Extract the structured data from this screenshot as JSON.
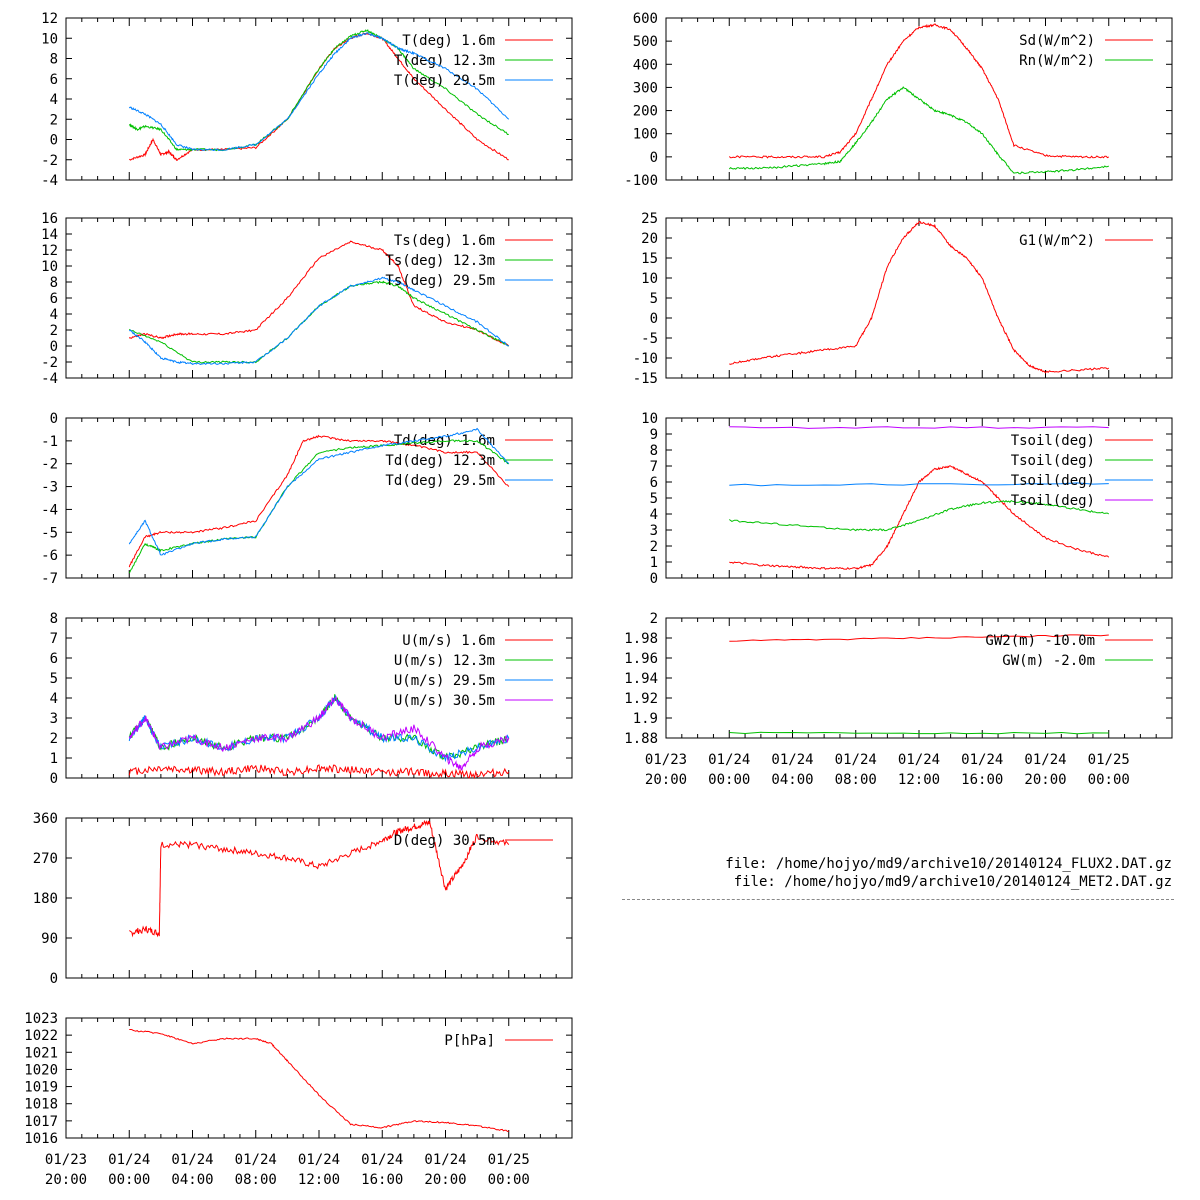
{
  "colors": {
    "red": "#ff0000",
    "green": "#00c000",
    "blue": "#0080ff",
    "purple": "#c000ff"
  },
  "files": [
    "file: /home/hojyo/md9/archive10/20140124_FLUX2.DAT.gz",
    "file: /home/hojyo/md9/archive10/20140124_MET2.DAT.gz"
  ],
  "time_axis": {
    "range_hours": [
      -4,
      28
    ],
    "ticks": [
      {
        "hour": -4,
        "line1": "01/23",
        "line2": "20:00"
      },
      {
        "hour": 0,
        "line1": "01/24",
        "line2": "00:00"
      },
      {
        "hour": 4,
        "line1": "01/24",
        "line2": "04:00"
      },
      {
        "hour": 8,
        "line1": "01/24",
        "line2": "08:00"
      },
      {
        "hour": 12,
        "line1": "01/24",
        "line2": "12:00"
      },
      {
        "hour": 16,
        "line1": "01/24",
        "line2": "16:00"
      },
      {
        "hour": 20,
        "line1": "01/24",
        "line2": "20:00"
      },
      {
        "hour": 24,
        "line1": "01/25",
        "line2": "00:00"
      }
    ]
  },
  "chart_data": [
    {
      "id": "temperature",
      "type": "line",
      "ylim": [
        -4,
        12
      ],
      "yticks": [
        -4,
        -2,
        0,
        2,
        4,
        6,
        8,
        10,
        12
      ],
      "series": [
        {
          "name": "T(deg)  1.6m",
          "color": "red",
          "x": [
            0,
            1,
            1.5,
            2,
            2.5,
            3,
            4,
            6,
            8,
            10,
            12,
            13,
            14,
            15,
            16,
            17,
            18,
            20,
            22,
            24
          ],
          "y": [
            -2,
            -1.5,
            0,
            -1.5,
            -1.2,
            -2,
            -1,
            -1,
            -0.8,
            2,
            7,
            9,
            10,
            10.5,
            10,
            8,
            6,
            3,
            0,
            -2
          ]
        },
        {
          "name": "T(deg) 12.3m",
          "color": "green",
          "x": [
            0,
            0.5,
            1,
            2,
            3,
            4,
            6,
            8,
            10,
            12,
            13,
            14,
            15,
            16,
            17,
            18,
            20,
            22,
            24
          ],
          "y": [
            1.5,
            1,
            1.3,
            1,
            -1,
            -1,
            -1,
            -0.5,
            2,
            7,
            9,
            10.2,
            10.8,
            10,
            9,
            7,
            5,
            2.5,
            0.5
          ]
        },
        {
          "name": "T(deg) 29.5m",
          "color": "blue",
          "x": [
            0,
            1,
            2,
            3,
            4,
            6,
            8,
            10,
            12,
            13,
            14,
            15,
            16,
            17,
            18,
            20,
            22,
            24
          ],
          "y": [
            3.2,
            2.5,
            1.5,
            -0.5,
            -1,
            -1,
            -0.5,
            2,
            6.5,
            8.5,
            10,
            10.5,
            10,
            9,
            8.5,
            7,
            5,
            2
          ]
        }
      ]
    },
    {
      "id": "surface-temperature",
      "type": "line",
      "ylim": [
        -4,
        16
      ],
      "yticks": [
        -4,
        -2,
        0,
        2,
        4,
        6,
        8,
        10,
        12,
        14,
        16
      ],
      "series": [
        {
          "name": "Ts(deg)  1.6m",
          "color": "red",
          "x": [
            0,
            1,
            2,
            3,
            4,
            6,
            8,
            10,
            12,
            14,
            16,
            17,
            18,
            20,
            22,
            24
          ],
          "y": [
            1,
            1.5,
            1,
            1.5,
            1.5,
            1.5,
            2,
            6,
            11,
            13,
            12,
            10,
            5,
            3,
            2,
            0
          ]
        },
        {
          "name": "Ts(deg) 12.3m",
          "color": "green",
          "x": [
            0,
            2,
            4,
            6,
            8,
            10,
            12,
            14,
            16,
            17,
            18,
            20,
            22,
            24
          ],
          "y": [
            2,
            0.5,
            -2,
            -2,
            -2,
            1,
            5,
            7.5,
            8,
            7.5,
            6,
            4,
            2,
            0
          ]
        },
        {
          "name": "Ts(deg) 29.5m",
          "color": "blue",
          "x": [
            0,
            1,
            2,
            3,
            4,
            6,
            8,
            10,
            12,
            14,
            16,
            17,
            18,
            20,
            22,
            24
          ],
          "y": [
            2,
            0.5,
            -1.5,
            -2,
            -2.2,
            -2.2,
            -2,
            1,
            5,
            7.5,
            8.5,
            8,
            7,
            5,
            3,
            0
          ]
        }
      ]
    },
    {
      "id": "dewpoint",
      "type": "line",
      "ylim": [
        -7,
        0
      ],
      "yticks": [
        -7,
        -6,
        -5,
        -4,
        -3,
        -2,
        -1,
        0
      ],
      "series": [
        {
          "name": "Td(deg)  1.6m",
          "color": "red",
          "x": [
            0,
            1,
            2,
            4,
            6,
            8,
            10,
            11,
            12,
            14,
            16,
            18,
            20,
            22,
            24
          ],
          "y": [
            -6.5,
            -5.2,
            -5,
            -5,
            -4.8,
            -4.5,
            -2.5,
            -1,
            -0.8,
            -1,
            -1,
            -1.2,
            -1.5,
            -1.5,
            -3
          ]
        },
        {
          "name": "Td(deg) 12.3m",
          "color": "green",
          "x": [
            0,
            1,
            2,
            4,
            6,
            8,
            10,
            12,
            14,
            16,
            18,
            20,
            22,
            24
          ],
          "y": [
            -6.8,
            -5.5,
            -5.8,
            -5.5,
            -5.3,
            -5.2,
            -3,
            -1.5,
            -1.3,
            -1.2,
            -1.1,
            -1,
            -1,
            -2
          ]
        },
        {
          "name": "Td(deg) 29.5m",
          "color": "blue",
          "x": [
            0,
            1,
            2,
            4,
            6,
            8,
            10,
            12,
            14,
            16,
            18,
            20,
            22,
            24
          ],
          "y": [
            -5.5,
            -4.5,
            -6,
            -5.5,
            -5.3,
            -5.2,
            -3,
            -1.8,
            -1.5,
            -1.2,
            -1,
            -0.8,
            -0.5,
            -2
          ]
        }
      ]
    },
    {
      "id": "wind-speed",
      "type": "line",
      "ylim": [
        0,
        8
      ],
      "yticks": [
        0,
        1,
        2,
        3,
        4,
        5,
        6,
        7,
        8
      ],
      "series": [
        {
          "name": "U(m/s)  1.6m",
          "color": "red",
          "x": [
            0,
            2,
            4,
            6,
            8,
            10,
            12,
            14,
            16,
            18,
            20,
            22,
            24
          ],
          "y": [
            0.3,
            0.5,
            0.4,
            0.3,
            0.5,
            0.3,
            0.5,
            0.4,
            0.3,
            0.3,
            0.2,
            0.2,
            0.3
          ]
        },
        {
          "name": "U(m/s) 12.3m",
          "color": "green",
          "x": [
            0,
            1,
            2,
            4,
            6,
            8,
            10,
            12,
            13,
            14,
            16,
            18,
            20,
            22,
            24
          ],
          "y": [
            2,
            3,
            1.5,
            2,
            1.5,
            2,
            2,
            3,
            4,
            3,
            2,
            2,
            1,
            1.5,
            2
          ]
        },
        {
          "name": "U(m/s) 29.5m",
          "color": "blue",
          "x": [
            0,
            1,
            2,
            4,
            6,
            8,
            10,
            12,
            13,
            14,
            16,
            18,
            20,
            22,
            24
          ],
          "y": [
            2,
            3,
            1.5,
            2,
            1.5,
            2,
            2,
            3,
            4,
            3,
            2,
            2,
            1,
            1.5,
            2
          ]
        },
        {
          "name": "U(m/s) 30.5m",
          "color": "purple",
          "x": [
            0,
            1,
            2,
            4,
            6,
            8,
            10,
            12,
            13,
            14,
            16,
            18,
            20,
            21,
            22,
            24
          ],
          "y": [
            2,
            3,
            1.5,
            2,
            1.5,
            2,
            2,
            3,
            4,
            3,
            2,
            2.5,
            1,
            0.5,
            1.5,
            2
          ]
        }
      ]
    },
    {
      "id": "wind-direction",
      "type": "line",
      "ylim": [
        0,
        360
      ],
      "yticks": [
        0,
        90,
        180,
        270,
        360
      ],
      "series": [
        {
          "name": "D(deg) 30.5m",
          "color": "red",
          "x": [
            0,
            1,
            1.9,
            2,
            4,
            6,
            8,
            10,
            12,
            14,
            16,
            17,
            18,
            19,
            20,
            21,
            22,
            24
          ],
          "y": [
            100,
            110,
            100,
            300,
            300,
            290,
            280,
            270,
            250,
            280,
            310,
            330,
            340,
            350,
            200,
            250,
            320,
            300
          ]
        }
      ]
    },
    {
      "id": "pressure",
      "type": "line",
      "ylim": [
        1016,
        1023
      ],
      "yticks": [
        1016,
        1017,
        1018,
        1019,
        1020,
        1021,
        1022,
        1023
      ],
      "series": [
        {
          "name": "P[hPa]",
          "color": "red",
          "x": [
            0,
            2,
            4,
            6,
            8,
            9,
            10,
            12,
            14,
            16,
            18,
            20,
            22,
            24
          ],
          "y": [
            1022.3,
            1022.1,
            1021.5,
            1021.8,
            1021.8,
            1021.5,
            1020.5,
            1018.5,
            1016.8,
            1016.6,
            1017,
            1016.9,
            1016.7,
            1016.4
          ]
        }
      ]
    },
    {
      "id": "radiation",
      "type": "line",
      "ylim": [
        -100,
        600
      ],
      "yticks": [
        -100,
        0,
        100,
        200,
        300,
        400,
        500,
        600
      ],
      "series": [
        {
          "name": "Sd(W/m^2)",
          "color": "red",
          "x": [
            0,
            2,
            4,
            6,
            7,
            8,
            9,
            10,
            11,
            12,
            13,
            14,
            15,
            16,
            17,
            18,
            20,
            22,
            24
          ],
          "y": [
            0,
            0,
            0,
            0,
            20,
            100,
            250,
            400,
            500,
            560,
            570,
            550,
            470,
            380,
            250,
            50,
            5,
            0,
            0
          ]
        },
        {
          "name": "Rn(W/m^2)",
          "color": "green",
          "x": [
            0,
            2,
            4,
            6,
            7,
            8,
            9,
            10,
            11,
            12,
            13,
            14,
            15,
            16,
            17,
            18,
            20,
            22,
            24
          ],
          "y": [
            -50,
            -50,
            -40,
            -30,
            -20,
            60,
            150,
            250,
            300,
            250,
            200,
            180,
            150,
            100,
            10,
            -70,
            -65,
            -55,
            -40
          ]
        }
      ]
    },
    {
      "id": "ground-heat-flux",
      "type": "line",
      "ylim": [
        -15,
        25
      ],
      "yticks": [
        -15,
        -10,
        -5,
        0,
        5,
        10,
        15,
        20,
        25
      ],
      "series": [
        {
          "name": "G1(W/m^2)",
          "color": "red",
          "x": [
            0,
            2,
            4,
            6,
            8,
            9,
            10,
            11,
            12,
            13,
            14,
            15,
            16,
            17,
            18,
            19,
            20,
            22,
            24
          ],
          "y": [
            -11.5,
            -10,
            -9,
            -8,
            -7,
            0,
            13,
            20,
            24,
            23,
            18,
            15,
            10,
            0,
            -8,
            -12,
            -13.5,
            -13,
            -12.5
          ]
        }
      ]
    },
    {
      "id": "soil-temperature",
      "type": "line",
      "ylim": [
        0,
        10
      ],
      "yticks": [
        0,
        1,
        2,
        3,
        4,
        5,
        6,
        7,
        8,
        9,
        10
      ],
      "series": [
        {
          "name": "Tsoil(deg)",
          "color": "red",
          "x": [
            0,
            2,
            4,
            6,
            8,
            9,
            10,
            11,
            12,
            13,
            14,
            15,
            16,
            17,
            18,
            20,
            22,
            24
          ],
          "y": [
            1,
            0.8,
            0.7,
            0.6,
            0.6,
            0.8,
            2,
            4,
            6,
            6.8,
            7,
            6.5,
            6,
            5,
            4,
            2.5,
            1.8,
            1.3
          ]
        },
        {
          "name": "Tsoil(deg)",
          "color": "green",
          "x": [
            0,
            4,
            8,
            10,
            12,
            14,
            16,
            18,
            20,
            22,
            24
          ],
          "y": [
            3.6,
            3.3,
            3,
            3,
            3.6,
            4.3,
            4.7,
            4.8,
            4.6,
            4.3,
            4
          ]
        },
        {
          "name": "Tsoil(deg)",
          "color": "blue",
          "x": [
            0,
            24
          ],
          "y": [
            5.8,
            5.9
          ]
        },
        {
          "name": "Tsoil(deg)",
          "color": "purple",
          "x": [
            0,
            24
          ],
          "y": [
            9.4,
            9.4
          ]
        }
      ]
    },
    {
      "id": "groundwater",
      "type": "line",
      "ylim": [
        1.88,
        2
      ],
      "yticks": [
        1.88,
        1.9,
        1.92,
        1.94,
        1.96,
        1.98,
        2
      ],
      "series": [
        {
          "name": "GW2(m) -10.0m",
          "color": "red",
          "x": [
            0,
            12,
            24
          ],
          "y": [
            1.977,
            1.98,
            1.983
          ]
        },
        {
          "name": "GW(m) -2.0m",
          "color": "green",
          "x": [
            0,
            24
          ],
          "y": [
            1.885,
            1.885
          ]
        }
      ]
    }
  ]
}
